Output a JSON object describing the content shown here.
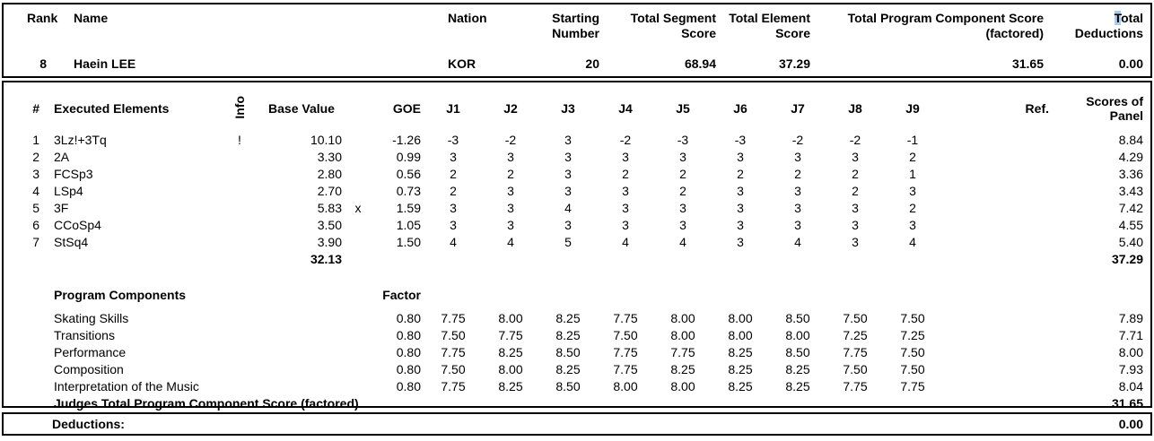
{
  "colors": {
    "highlight": "#aecbe8",
    "text": "#000000",
    "border": "#000000"
  },
  "summary": {
    "headers": {
      "rank": "Rank",
      "name": "Name",
      "nation": "Nation",
      "starting_number": "Starting Number",
      "total_segment_score": "Total Segment Score",
      "total_element_score": "Total Element Score",
      "total_program_component_score": "Total Program Component Score (factored)",
      "total_deductions_highlight_char": "T",
      "total_deductions_rest": "otal Deductions"
    },
    "row": {
      "rank": "8",
      "name": "Haein LEE",
      "nation": "KOR",
      "starting_number": "20",
      "total_segment_score": "68.94",
      "total_element_score": "37.29",
      "total_program_component_score": "31.65",
      "total_deductions": "0.00"
    }
  },
  "elements": {
    "header": {
      "num": "#",
      "name": "Executed Elements",
      "info": "Info",
      "base_value": "Base Value",
      "goe": "GOE",
      "judges": [
        "J1",
        "J2",
        "J3",
        "J4",
        "J5",
        "J6",
        "J7",
        "J8",
        "J9"
      ],
      "ref": "Ref.",
      "panel": "Scores of Panel"
    },
    "rows": [
      {
        "num": "1",
        "name": "3Lz!+3Tq",
        "info": "!",
        "base": "10.10",
        "x": "",
        "goe": "-1.26",
        "j": [
          "-3",
          "-2",
          "3",
          "-2",
          "-3",
          "-3",
          "-2",
          "-2",
          "-1"
        ],
        "ref": "",
        "panel": "8.84"
      },
      {
        "num": "2",
        "name": "2A",
        "info": "",
        "base": "3.30",
        "x": "",
        "goe": "0.99",
        "j": [
          "3",
          "3",
          "3",
          "3",
          "3",
          "3",
          "3",
          "3",
          "2"
        ],
        "ref": "",
        "panel": "4.29"
      },
      {
        "num": "3",
        "name": "FCSp3",
        "info": "",
        "base": "2.80",
        "x": "",
        "goe": "0.56",
        "j": [
          "2",
          "2",
          "3",
          "2",
          "2",
          "2",
          "2",
          "2",
          "1"
        ],
        "ref": "",
        "panel": "3.36"
      },
      {
        "num": "4",
        "name": "LSp4",
        "info": "",
        "base": "2.70",
        "x": "",
        "goe": "0.73",
        "j": [
          "2",
          "3",
          "3",
          "3",
          "2",
          "3",
          "3",
          "2",
          "3"
        ],
        "ref": "",
        "panel": "3.43"
      },
      {
        "num": "5",
        "name": "3F",
        "info": "",
        "base": "5.83",
        "x": "x",
        "goe": "1.59",
        "j": [
          "3",
          "3",
          "4",
          "3",
          "3",
          "3",
          "3",
          "3",
          "2"
        ],
        "ref": "",
        "panel": "7.42"
      },
      {
        "num": "6",
        "name": "CCoSp4",
        "info": "",
        "base": "3.50",
        "x": "",
        "goe": "1.05",
        "j": [
          "3",
          "3",
          "3",
          "3",
          "3",
          "3",
          "3",
          "3",
          "3"
        ],
        "ref": "",
        "panel": "4.55"
      },
      {
        "num": "7",
        "name": "StSq4",
        "info": "",
        "base": "3.90",
        "x": "",
        "goe": "1.50",
        "j": [
          "4",
          "4",
          "5",
          "4",
          "4",
          "3",
          "4",
          "3",
          "4"
        ],
        "ref": "",
        "panel": "5.40"
      }
    ],
    "total_base_value": "32.13",
    "total_panel_score": "37.29"
  },
  "components": {
    "title": "Program Components",
    "factor_label": "Factor",
    "rows": [
      {
        "name": "Skating Skills",
        "factor": "0.80",
        "j": [
          "7.75",
          "8.00",
          "8.25",
          "7.75",
          "8.00",
          "8.00",
          "8.50",
          "7.50",
          "7.50"
        ],
        "panel": "7.89"
      },
      {
        "name": "Transitions",
        "factor": "0.80",
        "j": [
          "7.50",
          "7.75",
          "8.25",
          "7.50",
          "8.00",
          "8.00",
          "8.00",
          "7.25",
          "7.25"
        ],
        "panel": "7.71"
      },
      {
        "name": "Performance",
        "factor": "0.80",
        "j": [
          "7.75",
          "8.25",
          "8.50",
          "7.75",
          "7.75",
          "8.25",
          "8.50",
          "7.75",
          "7.50"
        ],
        "panel": "8.00"
      },
      {
        "name": "Composition",
        "factor": "0.80",
        "j": [
          "7.50",
          "8.00",
          "8.25",
          "7.75",
          "8.25",
          "8.25",
          "8.25",
          "7.50",
          "7.50"
        ],
        "panel": "7.93"
      },
      {
        "name": "Interpretation of the Music",
        "factor": "0.80",
        "j": [
          "7.75",
          "8.25",
          "8.50",
          "8.00",
          "8.00",
          "8.25",
          "8.25",
          "7.75",
          "7.75"
        ],
        "panel": "8.04"
      }
    ],
    "total_label": "Judges Total Program Component Score (factored)",
    "total_value": "31.65"
  },
  "deductions": {
    "label": "Deductions:",
    "value": "0.00"
  }
}
